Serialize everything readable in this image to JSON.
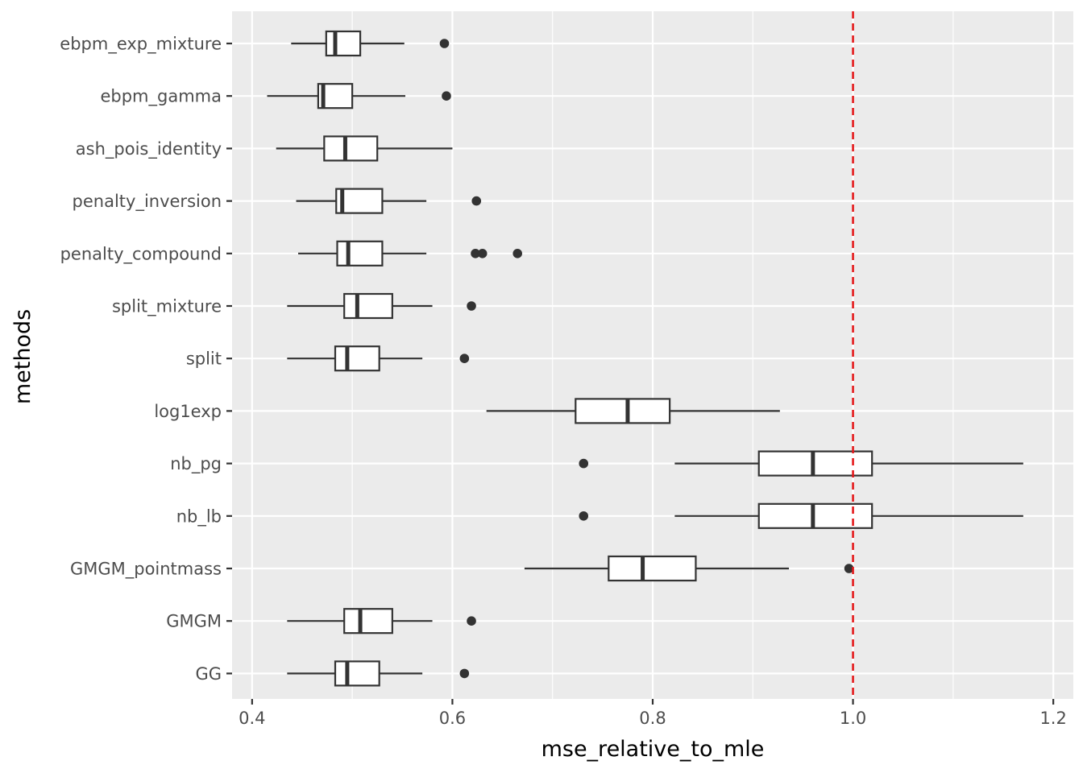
{
  "chart_data": {
    "type": "boxplot",
    "orientation": "horizontal",
    "xlabel": "mse_relative_to_mle",
    "ylabel": "methods",
    "xlim": [
      0.38,
      1.22
    ],
    "xticks": [
      0.4,
      0.6,
      0.8,
      1.0,
      1.2
    ],
    "xtick_labels": [
      "0.4",
      "0.6",
      "0.8",
      "1.0",
      "1.2"
    ],
    "grid": true,
    "reference_line": {
      "x": 1.0,
      "color": "#e41a1c",
      "style": "dashed"
    },
    "colors": {
      "panel": "#ebebeb",
      "grid": "#ffffff",
      "box_fill": "#ffffff",
      "box_stroke": "#333333"
    },
    "boxes": [
      {
        "method": "ebpm_exp_mixture",
        "whisker_low": 0.439,
        "q1": 0.474,
        "median": 0.483,
        "q3": 0.508,
        "whisker_high": 0.552,
        "outliers": [
          0.592
        ]
      },
      {
        "method": "ebpm_gamma",
        "whisker_low": 0.415,
        "q1": 0.466,
        "median": 0.471,
        "q3": 0.5,
        "whisker_high": 0.553,
        "outliers": [
          0.594
        ]
      },
      {
        "method": "ash_pois_identity",
        "whisker_low": 0.424,
        "q1": 0.472,
        "median": 0.493,
        "q3": 0.525,
        "whisker_high": 0.6,
        "outliers": []
      },
      {
        "method": "penalty_inversion",
        "whisker_low": 0.444,
        "q1": 0.484,
        "median": 0.49,
        "q3": 0.53,
        "whisker_high": 0.574,
        "outliers": [
          0.624
        ]
      },
      {
        "method": "penalty_compound",
        "whisker_low": 0.446,
        "q1": 0.485,
        "median": 0.496,
        "q3": 0.53,
        "whisker_high": 0.574,
        "outliers": [
          0.623,
          0.63,
          0.665
        ]
      },
      {
        "method": "split_mixture",
        "whisker_low": 0.435,
        "q1": 0.492,
        "median": 0.505,
        "q3": 0.54,
        "whisker_high": 0.58,
        "outliers": [
          0.619
        ]
      },
      {
        "method": "split",
        "whisker_low": 0.435,
        "q1": 0.483,
        "median": 0.495,
        "q3": 0.527,
        "whisker_high": 0.57,
        "outliers": [
          0.612
        ]
      },
      {
        "method": "log1exp",
        "whisker_low": 0.634,
        "q1": 0.723,
        "median": 0.775,
        "q3": 0.817,
        "whisker_high": 0.927,
        "outliers": []
      },
      {
        "method": "nb_pg",
        "whisker_low": 0.822,
        "q1": 0.906,
        "median": 0.96,
        "q3": 1.019,
        "whisker_high": 1.17,
        "outliers": [
          0.731
        ]
      },
      {
        "method": "nb_lb",
        "whisker_low": 0.822,
        "q1": 0.906,
        "median": 0.96,
        "q3": 1.019,
        "whisker_high": 1.17,
        "outliers": [
          0.731
        ]
      },
      {
        "method": "GMGM_pointmass",
        "whisker_low": 0.672,
        "q1": 0.756,
        "median": 0.79,
        "q3": 0.843,
        "whisker_high": 0.936,
        "outliers": [
          0.996
        ]
      },
      {
        "method": "GMGM",
        "whisker_low": 0.435,
        "q1": 0.492,
        "median": 0.508,
        "q3": 0.54,
        "whisker_high": 0.58,
        "outliers": [
          0.619
        ]
      },
      {
        "method": "GG",
        "whisker_low": 0.435,
        "q1": 0.483,
        "median": 0.495,
        "q3": 0.527,
        "whisker_high": 0.57,
        "outliers": [
          0.612
        ]
      }
    ]
  }
}
